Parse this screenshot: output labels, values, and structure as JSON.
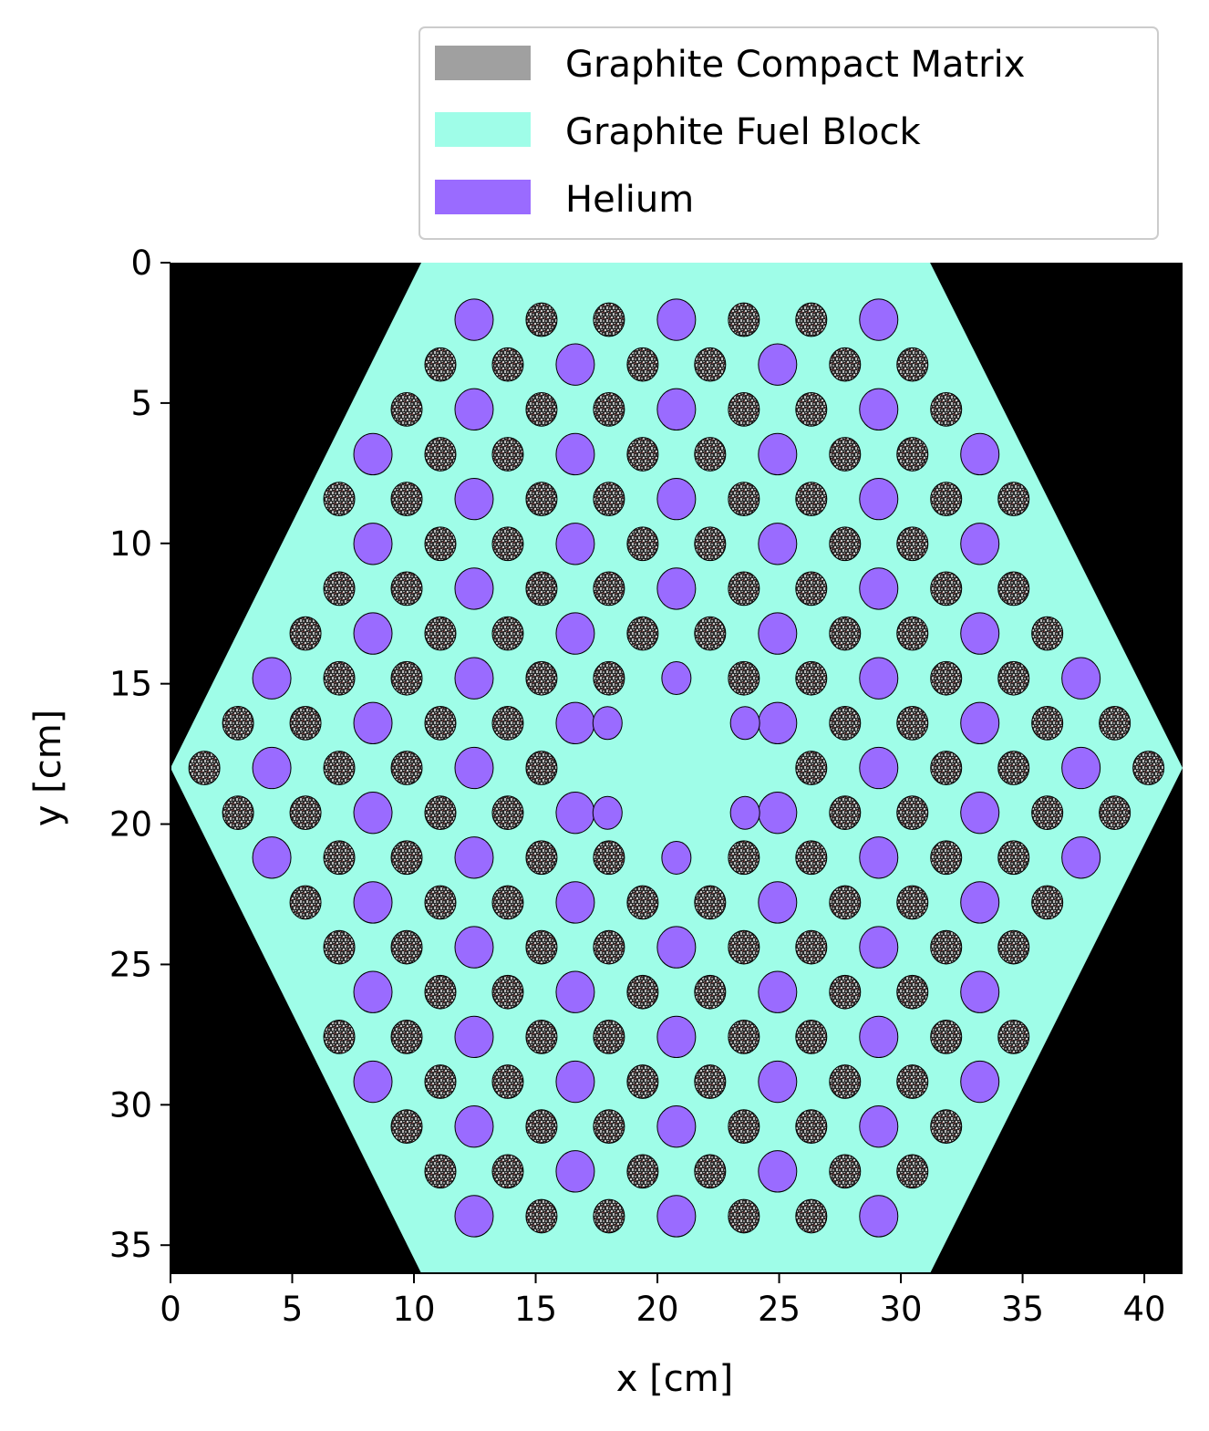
{
  "chart_data": {
    "type": "heatmap",
    "xlabel": "x [cm]",
    "ylabel": "y [cm]",
    "xlim": [
      0,
      41.57
    ],
    "ylim": [
      36,
      0
    ],
    "xticks": [
      0,
      5,
      10,
      15,
      20,
      25,
      30,
      35,
      40
    ],
    "yticks": [
      0,
      5,
      10,
      15,
      20,
      25,
      30,
      35
    ],
    "legend": {
      "placement": "top-right (above plot)",
      "entries": [
        {
          "label": "Graphite Compact Matrix",
          "color": "#a0a0a0"
        },
        {
          "label": "Graphite Fuel Block",
          "color": "#9ffde8"
        },
        {
          "label": "Helium",
          "color": "#9a6bff"
        }
      ]
    },
    "background_color": "#000000",
    "fuel_block": {
      "shape": "hexagon",
      "vertices": [
        [
          10.3,
          0
        ],
        [
          31.2,
          0
        ],
        [
          41.57,
          18
        ],
        [
          31.2,
          36
        ],
        [
          10.3,
          36
        ],
        [
          0,
          18
        ]
      ]
    },
    "pattern": {
      "row_pitch_y": 1.636,
      "column_pitch_x": 2.78,
      "center": [
        20.78,
        18
      ],
      "helium_small_holes": [
        [
          17.95,
          16.4
        ],
        [
          17.95,
          19.6
        ],
        [
          20.78,
          14.8
        ],
        [
          20.78,
          21.2
        ],
        [
          23.6,
          16.4
        ],
        [
          23.6,
          19.6
        ]
      ]
    },
    "fuel_compact_color": "#3f3f3f",
    "helium_hole_color": "#9a6bff"
  }
}
